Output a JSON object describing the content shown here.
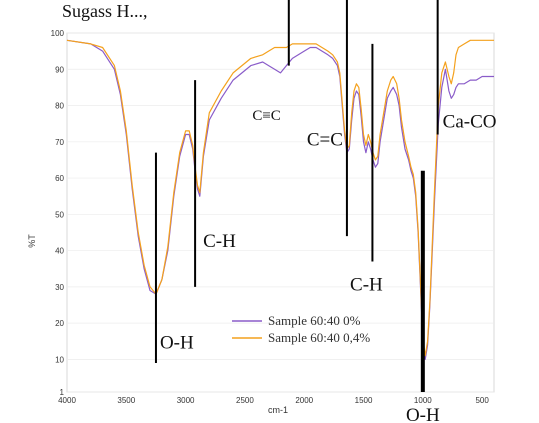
{
  "header_fragment": "Sugass H...,",
  "chart_data": {
    "type": "line",
    "title": "",
    "xlabel": "cm-1",
    "ylabel": "%T",
    "xlim": [
      4000,
      400
    ],
    "ylim": [
      1,
      100
    ],
    "x_ticks": [
      "4000",
      "3500",
      "3000",
      "2500",
      "2000",
      "1500",
      "1000",
      "500"
    ],
    "y_ticks": [
      "100",
      "90",
      "80",
      "70",
      "60",
      "50",
      "40",
      "30",
      "20",
      "10",
      "1"
    ],
    "legend_position": "lower-center",
    "series": [
      {
        "name": "Sample 60:40 0%",
        "color": "#8a5cc9",
        "x": [
          4000,
          3800,
          3700,
          3600,
          3550,
          3500,
          3450,
          3400,
          3350,
          3300,
          3250,
          3200,
          3150,
          3100,
          3050,
          3000,
          2970,
          2940,
          2920,
          2900,
          2880,
          2850,
          2800,
          2700,
          2600,
          2450,
          2350,
          2300,
          2250,
          2200,
          2150,
          2100,
          2050,
          2000,
          1950,
          1900,
          1850,
          1800,
          1760,
          1720,
          1700,
          1680,
          1660,
          1640,
          1620,
          1600,
          1580,
          1560,
          1540,
          1520,
          1500,
          1480,
          1460,
          1440,
          1420,
          1400,
          1380,
          1360,
          1330,
          1300,
          1270,
          1250,
          1220,
          1200,
          1180,
          1150,
          1120,
          1100,
          1080,
          1060,
          1040,
          1020,
          1000,
          980,
          960,
          940,
          920,
          900,
          870,
          840,
          810,
          780,
          760,
          740,
          720,
          700,
          650,
          600,
          550,
          500,
          450,
          400
        ],
        "y": [
          98,
          97,
          95,
          90,
          83,
          72,
          57,
          44,
          35,
          29,
          28,
          32,
          40,
          55,
          66,
          72,
          72,
          68,
          62,
          57,
          55,
          66,
          76,
          82,
          87,
          91,
          92,
          91,
          90,
          89,
          91,
          93,
          94,
          95,
          96,
          96,
          95,
          94,
          93,
          91,
          88,
          80,
          72,
          67,
          68,
          76,
          82,
          84,
          83,
          77,
          70,
          67,
          70,
          68,
          65,
          63,
          64,
          70,
          76,
          82,
          84,
          85,
          83,
          80,
          74,
          68,
          65,
          62,
          60,
          55,
          45,
          30,
          15,
          10,
          14,
          25,
          40,
          55,
          75,
          85,
          90,
          84,
          82,
          83,
          85,
          86,
          86,
          87,
          87,
          88,
          88,
          88
        ]
      },
      {
        "name": "Sample 60:40 0,4%",
        "color": "#f4a11d",
        "x": [
          4000,
          3800,
          3700,
          3600,
          3550,
          3500,
          3450,
          3400,
          3350,
          3300,
          3250,
          3200,
          3150,
          3100,
          3050,
          3000,
          2970,
          2940,
          2920,
          2900,
          2880,
          2850,
          2800,
          2700,
          2600,
          2450,
          2350,
          2300,
          2250,
          2200,
          2150,
          2100,
          2050,
          2000,
          1950,
          1900,
          1850,
          1800,
          1760,
          1720,
          1700,
          1680,
          1660,
          1640,
          1620,
          1600,
          1580,
          1560,
          1540,
          1520,
          1500,
          1480,
          1460,
          1440,
          1420,
          1400,
          1380,
          1360,
          1330,
          1300,
          1270,
          1250,
          1220,
          1200,
          1180,
          1150,
          1120,
          1100,
          1080,
          1060,
          1040,
          1020,
          1000,
          980,
          960,
          940,
          920,
          900,
          870,
          840,
          810,
          780,
          760,
          740,
          720,
          700,
          650,
          600,
          550,
          500,
          450,
          400
        ],
        "y": [
          98,
          97,
          96,
          91,
          84,
          73,
          58,
          45,
          36,
          30,
          28,
          32,
          41,
          56,
          67,
          73,
          73,
          69,
          63,
          58,
          56,
          67,
          78,
          84,
          89,
          93,
          94,
          95,
          96,
          96,
          96,
          97,
          97,
          97,
          97,
          97,
          96,
          95,
          94,
          92,
          89,
          81,
          73,
          68,
          69,
          78,
          84,
          86,
          85,
          79,
          72,
          69,
          72,
          70,
          67,
          65,
          66,
          72,
          78,
          84,
          87,
          88,
          86,
          82,
          76,
          70,
          66,
          63,
          61,
          56,
          46,
          31,
          16,
          11,
          15,
          26,
          42,
          58,
          80,
          89,
          92,
          88,
          86,
          89,
          94,
          96,
          97,
          98,
          98,
          98,
          98,
          98
        ]
      }
    ],
    "annotations": [
      {
        "text": "O-H",
        "x": 3250,
        "line_from": 9,
        "line_to": 67
      },
      {
        "text": "C-H",
        "x": 2920,
        "line_from": 30,
        "line_to": 87
      },
      {
        "text": "C≡C",
        "x": 2130,
        "line_from": 91,
        "line_to": 114
      },
      {
        "text": "C=C",
        "x": 1640,
        "line_from": 44,
        "line_to": 114
      },
      {
        "text": "C-H",
        "x": 1425,
        "line_from": 37,
        "line_to": 97
      },
      {
        "text": "O-H",
        "x": 1000,
        "line_from": 1,
        "line_to": 62
      },
      {
        "text": "Ca-CO",
        "x": 875,
        "line_from": 72,
        "line_to": 114
      }
    ]
  }
}
